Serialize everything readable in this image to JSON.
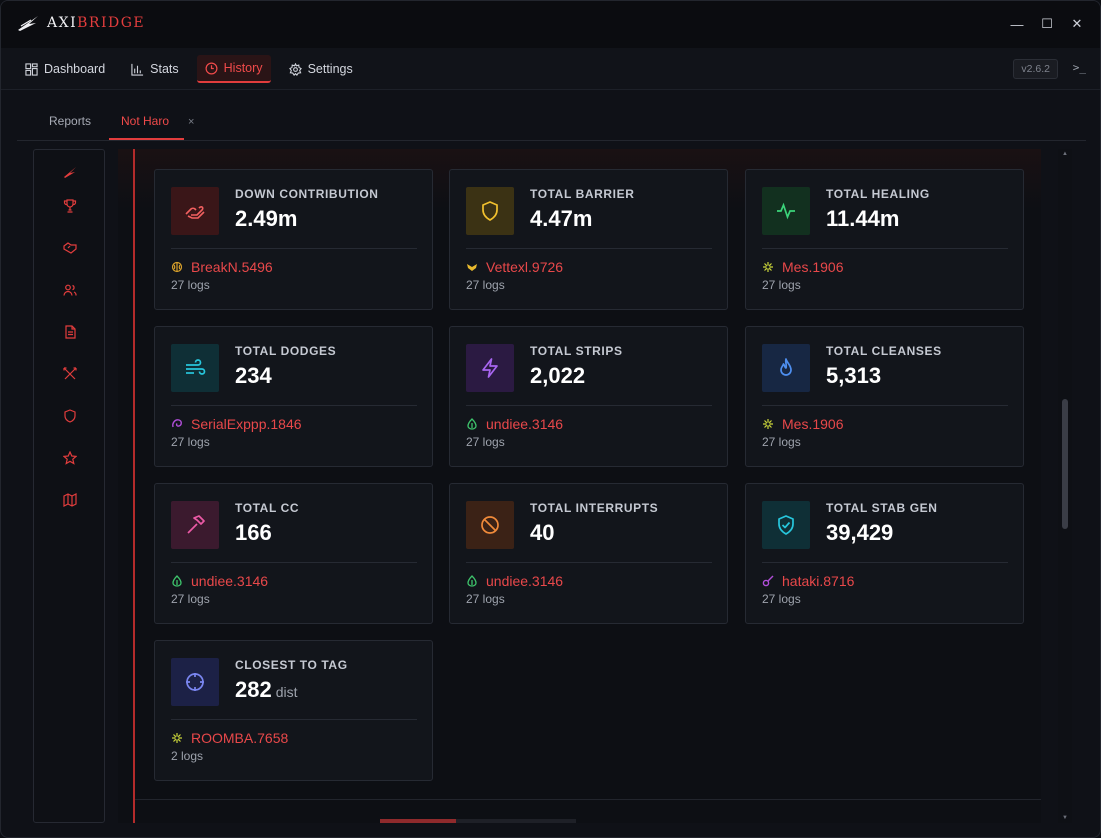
{
  "app": {
    "title_main": "AXI",
    "title_accent": "BRIDGE"
  },
  "window_controls": {
    "minimize": "—",
    "maximize": "☐",
    "close": "✕"
  },
  "nav": {
    "items": [
      {
        "label": "Dashboard",
        "icon": "grid-icon"
      },
      {
        "label": "Stats",
        "icon": "bar-chart-icon"
      },
      {
        "label": "History",
        "icon": "clock-icon",
        "active": true
      },
      {
        "label": "Settings",
        "icon": "gear-icon"
      }
    ],
    "version": "v2.6.2",
    "terminal": ">_"
  },
  "tabs": {
    "reports": "Reports",
    "active": "Not Haro",
    "close": "×"
  },
  "colors": {
    "accent": "#e23d3d",
    "player": "#e8484a"
  },
  "cards": [
    {
      "label": "DOWN CONTRIBUTION",
      "value": "2.49m",
      "player": "BreakN.5496",
      "logs": "27 logs"
    },
    {
      "label": "TOTAL BARRIER",
      "value": "4.47m",
      "player": "Vettexl.9726",
      "logs": "27 logs"
    },
    {
      "label": "TOTAL HEALING",
      "value": "11.44m",
      "player": "Mes.1906",
      "logs": "27 logs"
    },
    {
      "label": "TOTAL DODGES",
      "value": "234",
      "player": "SerialExppp.1846",
      "logs": "27 logs"
    },
    {
      "label": "TOTAL STRIPS",
      "value": "2,022",
      "player": "undiee.3146",
      "logs": "27 logs"
    },
    {
      "label": "TOTAL CLEANSES",
      "value": "5,313",
      "player": "Mes.1906",
      "logs": "27 logs"
    },
    {
      "label": "TOTAL CC",
      "value": "166",
      "player": "undiee.3146",
      "logs": "27 logs"
    },
    {
      "label": "TOTAL INTERRUPTS",
      "value": "40",
      "player": "undiee.3146",
      "logs": "27 logs"
    },
    {
      "label": "TOTAL STAB GEN",
      "value": "39,429",
      "player": "hataki.8716",
      "logs": "27 logs"
    },
    {
      "label": "CLOSEST TO TAG",
      "value": "282",
      "unit": "dist",
      "player": "ROOMBA.7658",
      "logs": "2 logs"
    }
  ]
}
